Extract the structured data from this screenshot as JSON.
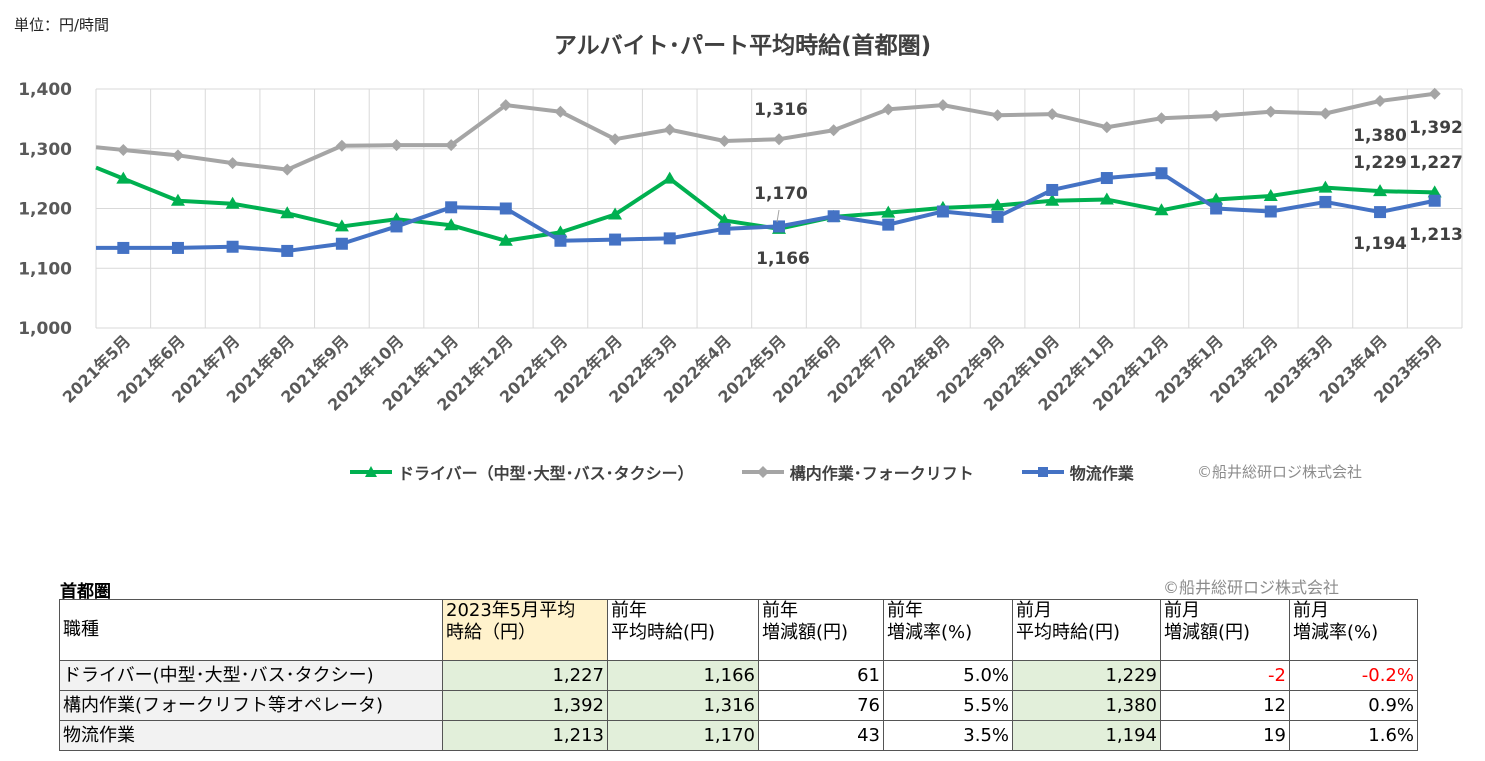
{
  "unit_label": "単位：円/時間",
  "chart_credit": "©船井総研ロジ株式会社",
  "chart_data": {
    "type": "line",
    "title": "アルバイト･パート平均時給(首都圏)",
    "categories": [
      "2021年5月",
      "2021年6月",
      "2021年7月",
      "2021年8月",
      "2021年9月",
      "2021年10月",
      "2021年11月",
      "2021年12月",
      "2022年1月",
      "2022年2月",
      "2022年3月",
      "2022年4月",
      "2022年5月",
      "2022年6月",
      "2022年7月",
      "2022年8月",
      "2022年9月",
      "2022年10月",
      "2022年11月",
      "2022年12月",
      "2023年1月",
      "2023年2月",
      "2023年3月",
      "2023年4月",
      "2023年5月"
    ],
    "ylim": [
      1000,
      1400
    ],
    "yticks": [
      "1,000",
      "1,100",
      "1,200",
      "1,300",
      "1,400"
    ],
    "grid": true,
    "legend_position": "bottom",
    "series": [
      {
        "name": "ドライバー（中型･大型･バス･タクシー）",
        "color": "#00b050",
        "marker": "triangle",
        "values": [
          1250,
          1213,
          1208,
          1192,
          1170,
          1182,
          1172,
          1146,
          1160,
          1190,
          1250,
          1180,
          1166,
          1186,
          1193,
          1201,
          1205,
          1213,
          1215,
          1197,
          1215,
          1221,
          1235,
          1229,
          1227
        ]
      },
      {
        "name": "構内作業･フォークリフト",
        "color": "#a5a5a5",
        "marker": "diamond",
        "values": [
          1298,
          1289,
          1276,
          1265,
          1305,
          1306,
          1306,
          1373,
          1362,
          1316,
          1332,
          1313,
          1316,
          1331,
          1366,
          1373,
          1356,
          1358,
          1336,
          1351,
          1355,
          1362,
          1359,
          1380,
          1392
        ]
      },
      {
        "name": "物流作業",
        "color": "#4472c4",
        "marker": "square",
        "values": [
          1134,
          1134,
          1136,
          1129,
          1141,
          1170,
          1202,
          1200,
          1146,
          1148,
          1150,
          1166,
          1170,
          1187,
          1173,
          1195,
          1186,
          1231,
          1251,
          1259,
          1200,
          1195,
          1211,
          1194,
          1213
        ]
      }
    ],
    "annotations": [
      {
        "text": "1,316"
      },
      {
        "text": "1,170"
      },
      {
        "text": "1,166"
      },
      {
        "text": "1,380"
      },
      {
        "text": "1,392"
      },
      {
        "text": "1,229"
      },
      {
        "text": "1,227"
      },
      {
        "text": "1,194"
      },
      {
        "text": "1,213"
      }
    ]
  },
  "table": {
    "caption": "首都圏",
    "credit": "©船井総研ロジ株式会社",
    "headers": [
      [
        "職種"
      ],
      [
        "2023年5月平均",
        "時給（円）"
      ],
      [
        "前年",
        "平均時給(円)"
      ],
      [
        "前年",
        "増減額(円)"
      ],
      [
        "前年",
        "増減率(%)"
      ],
      [
        "前月",
        "平均時給(円)"
      ],
      [
        "前月",
        "増減額(円)"
      ],
      [
        "前月",
        "増減率(%)"
      ]
    ],
    "rows": [
      [
        "ドライバー(中型･大型･バス･タクシー)",
        "1,227",
        "1,166",
        "61",
        "5.0%",
        "1,229",
        "-2",
        "-0.2%"
      ],
      [
        "構内作業(フォークリフト等オペレータ)",
        "1,392",
        "1,316",
        "76",
        "5.5%",
        "1,380",
        "12",
        "0.9%"
      ],
      [
        "物流作業",
        "1,213",
        "1,170",
        "43",
        "3.5%",
        "1,194",
        "19",
        "1.6%"
      ]
    ]
  }
}
